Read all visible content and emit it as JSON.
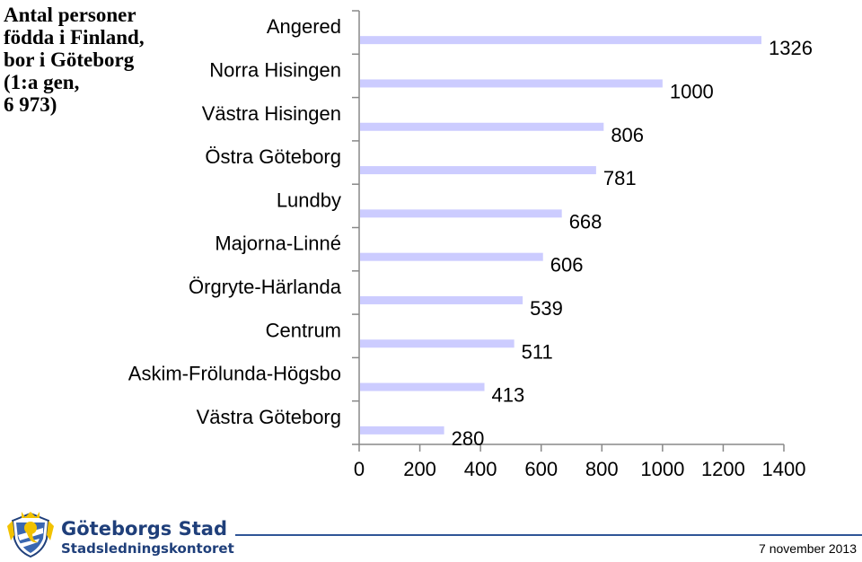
{
  "chart_data": {
    "type": "bar",
    "orientation": "horizontal",
    "title_lines": [
      "Antal personer",
      "födda i Finland,",
      "bor i Göteborg",
      "(1:a gen,",
      "6 973)"
    ],
    "categories": [
      "Angered",
      "Norra Hisingen",
      "Västra Hisingen",
      "Östra Göteborg",
      "Lundby",
      "Majorna-Linné",
      "Örgryte-Härlanda",
      "Centrum",
      "Askim-Frölunda-Högsbo",
      "Västra Göteborg"
    ],
    "values": [
      1326,
      1000,
      806,
      781,
      668,
      606,
      539,
      511,
      413,
      280
    ],
    "value_labels": [
      "1326",
      "1000",
      "806",
      "781",
      "668",
      "606",
      "539",
      "511",
      "413",
      "280"
    ],
    "xlim": [
      0,
      1400
    ],
    "x_ticks": [
      "0",
      "200",
      "400",
      "600",
      "800",
      "1000",
      "1200",
      "1400"
    ],
    "bar_color": "#ccccff",
    "grid": false,
    "legend": "none"
  },
  "footer": {
    "org_name": "Göteborgs Stad",
    "org_unit": "Stadsledningskontoret",
    "date": "7 november 2013",
    "brand_color": "#1f3f7a",
    "rule_color": "#2f5597",
    "logo_icon": "city-coat-of-arms-icon"
  }
}
